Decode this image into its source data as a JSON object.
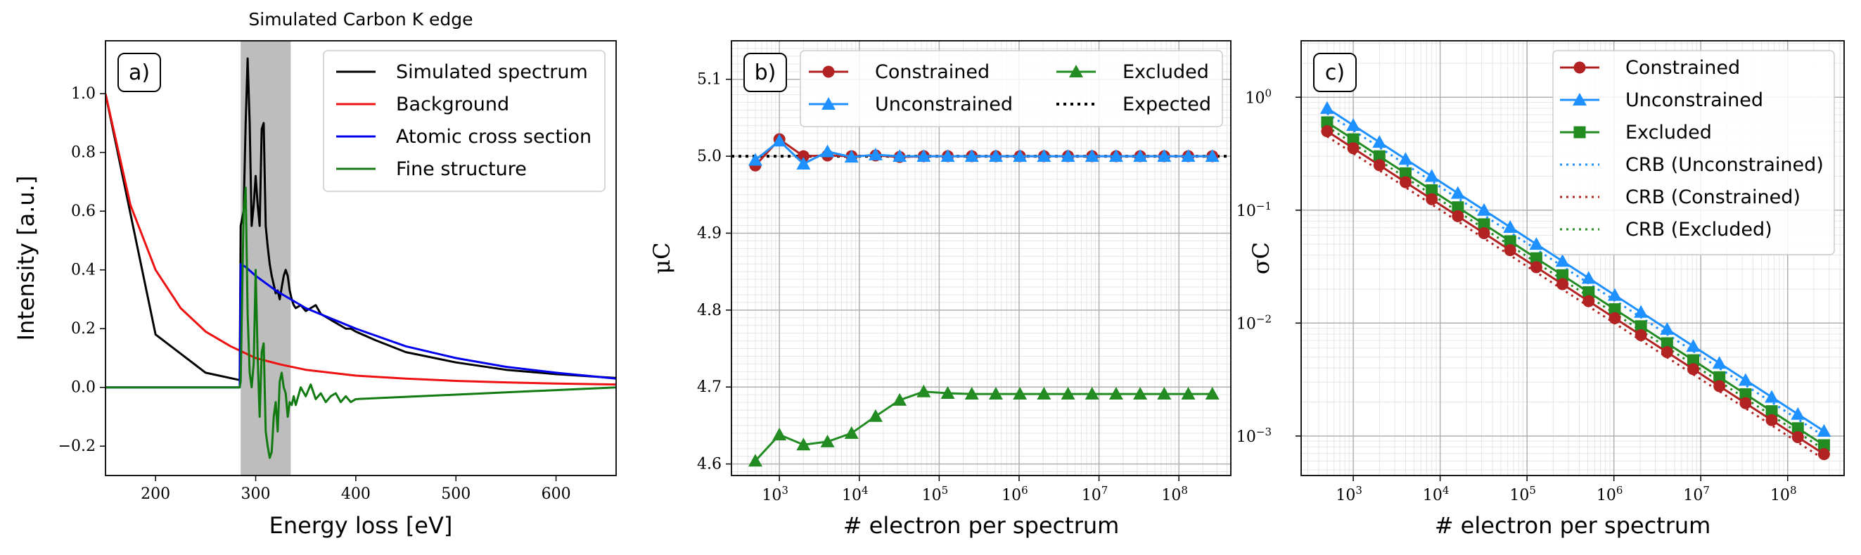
{
  "colors": {
    "black": "#000000",
    "red": "#ee1111",
    "blue": "#0000ee",
    "green": "#117a11",
    "constrained": "#b22222",
    "unconstrained": "#1e90ff",
    "excluded": "#228b22",
    "shade": "#bdbdbd",
    "grid_major": "#b0b0b0",
    "grid_minor": "#e6e6e6"
  },
  "chart_data": [
    {
      "type": "line",
      "panel_label": "a)",
      "title": "Simulated Carbon K edge",
      "xlabel": "Energy loss [eV]",
      "ylabel": "Intensity [a.u.]",
      "xlim": [
        150,
        660
      ],
      "ylim": [
        -0.3,
        1.18
      ],
      "xticks": [
        200,
        300,
        400,
        500,
        600
      ],
      "xtick_labels": [
        "200",
        "300",
        "400",
        "500",
        "600"
      ],
      "yticks": [
        -0.2,
        0.0,
        0.2,
        0.4,
        0.6,
        0.8,
        1.0
      ],
      "ytick_labels": [
        "−0.2",
        "0.0",
        "0.2",
        "0.4",
        "0.6",
        "0.8",
        "1.0"
      ],
      "shaded_region": [
        285,
        335
      ],
      "legend": [
        "Simulated spectrum",
        "Background",
        "Atomic cross section",
        "Fine structure"
      ],
      "series": [
        {
          "name": "Simulated spectrum",
          "color": "black",
          "x": [
            150,
            200,
            250,
            284,
            285,
            288,
            290,
            292,
            294,
            296,
            298,
            300,
            302,
            304,
            306,
            308,
            310,
            312,
            314,
            316,
            318,
            320,
            322,
            324,
            326,
            328,
            330,
            332,
            334,
            336,
            338,
            340,
            345,
            350,
            355,
            360,
            365,
            370,
            375,
            380,
            385,
            390,
            395,
            400,
            420,
            450,
            500,
            550,
            600,
            660
          ],
          "y": [
            1.0,
            0.18,
            0.05,
            0.025,
            0.55,
            0.6,
            0.9,
            1.12,
            0.9,
            0.55,
            0.62,
            0.72,
            0.62,
            0.55,
            0.88,
            0.9,
            0.55,
            0.48,
            0.42,
            0.38,
            0.35,
            0.32,
            0.33,
            0.3,
            0.34,
            0.38,
            0.4,
            0.38,
            0.33,
            0.3,
            0.28,
            0.27,
            0.28,
            0.26,
            0.27,
            0.28,
            0.25,
            0.24,
            0.23,
            0.22,
            0.21,
            0.2,
            0.2,
            0.19,
            0.16,
            0.12,
            0.085,
            0.06,
            0.045,
            0.032
          ]
        },
        {
          "name": "Background",
          "color": "red",
          "x": [
            150,
            175,
            200,
            225,
            250,
            275,
            300,
            325,
            350,
            400,
            450,
            500,
            550,
            600,
            660
          ],
          "y": [
            1.0,
            0.62,
            0.4,
            0.27,
            0.19,
            0.14,
            0.1,
            0.078,
            0.06,
            0.04,
            0.03,
            0.022,
            0.017,
            0.013,
            0.01
          ]
        },
        {
          "name": "Atomic cross section",
          "color": "blue",
          "x": [
            150,
            284,
            285,
            290,
            300,
            320,
            350,
            400,
            450,
            500,
            550,
            600,
            660
          ],
          "y": [
            0,
            0,
            0.42,
            0.41,
            0.38,
            0.33,
            0.27,
            0.2,
            0.14,
            0.1,
            0.07,
            0.05,
            0.03
          ]
        },
        {
          "name": "Fine structure",
          "color": "green",
          "x": [
            150,
            284,
            285,
            288,
            290,
            292,
            294,
            296,
            298,
            300,
            302,
            304,
            306,
            308,
            310,
            312,
            314,
            316,
            318,
            320,
            322,
            324,
            326,
            328,
            330,
            332,
            334,
            336,
            338,
            340,
            345,
            350,
            355,
            360,
            365,
            370,
            375,
            380,
            385,
            390,
            395,
            400,
            660
          ],
          "y": [
            0,
            0,
            0.02,
            0.6,
            0.68,
            0.25,
            0.05,
            0.0,
            0.08,
            0.4,
            0.1,
            -0.1,
            0.12,
            0.15,
            -0.15,
            -0.2,
            -0.24,
            -0.22,
            -0.1,
            -0.05,
            -0.15,
            0.02,
            0.05,
            0.0,
            -0.02,
            -0.1,
            -0.05,
            -0.06,
            -0.03,
            -0.06,
            0.0,
            -0.03,
            0.01,
            -0.04,
            -0.02,
            -0.05,
            -0.03,
            -0.02,
            -0.05,
            -0.03,
            -0.05,
            -0.04,
            0.0
          ]
        }
      ]
    },
    {
      "type": "line",
      "panel_label": "b)",
      "xlabel": "# electron per spectrum",
      "ylabel": "μC",
      "xscale": "log",
      "xlim_log10": [
        2.4,
        8.65
      ],
      "ylim": [
        4.585,
        5.15
      ],
      "xtick_exponents": [
        3,
        4,
        5,
        6,
        7,
        8
      ],
      "xtick_labels": [
        "10",
        "10",
        "10",
        "10",
        "10",
        "10"
      ],
      "yticks": [
        4.6,
        4.7,
        4.8,
        4.9,
        5.0,
        5.1
      ],
      "ytick_labels": [
        "4.6",
        "4.7",
        "4.8",
        "4.9",
        "5.0",
        "5.1"
      ],
      "x": [
        500,
        1000,
        2000,
        4000,
        8000,
        16000,
        32000,
        64000,
        128000,
        256000,
        512000,
        1024000,
        2048000,
        4096000,
        8192000,
        16384000,
        32768000,
        65536000,
        131072000,
        262144000
      ],
      "legend": [
        "Constrained",
        "Unconstrained",
        "Excluded",
        "Expected"
      ],
      "expected": 5.0,
      "series": [
        {
          "name": "Constrained",
          "color": "constrained",
          "marker": "circle",
          "values": [
            4.988,
            5.022,
            5.0,
            5.001,
            5.0,
            5.001,
            4.999,
            5.0,
            5.0,
            5.0,
            5.0,
            5.0,
            5.0,
            5.0,
            5.0,
            5.0,
            5.0,
            5.0,
            5.0,
            5.0
          ]
        },
        {
          "name": "Unconstrained",
          "color": "unconstrained",
          "marker": "triangle",
          "values": [
            4.995,
            5.02,
            4.99,
            5.006,
            4.999,
            5.002,
            5.0,
            5.0,
            5.0,
            5.0,
            5.0,
            5.0,
            5.0,
            5.0,
            5.0,
            5.0,
            5.0,
            5.0,
            5.0,
            5.0
          ]
        },
        {
          "name": "Excluded",
          "color": "excluded",
          "marker": "triangle",
          "values": [
            4.604,
            4.638,
            4.625,
            4.629,
            4.64,
            4.662,
            4.683,
            4.694,
            4.692,
            4.691,
            4.691,
            4.691,
            4.691,
            4.691,
            4.691,
            4.691,
            4.691,
            4.691,
            4.691,
            4.691
          ]
        }
      ]
    },
    {
      "type": "line",
      "panel_label": "c)",
      "xlabel": "# electron per spectrum",
      "ylabel": "σC",
      "xscale": "log",
      "yscale": "log",
      "xlim_log10": [
        2.4,
        8.65
      ],
      "ylim_log10": [
        -3.35,
        0.5
      ],
      "xtick_exponents": [
        3,
        4,
        5,
        6,
        7,
        8
      ],
      "ytick_exponents": [
        -3,
        -2,
        -1,
        0
      ],
      "tick_base": "10",
      "x": [
        500,
        1000,
        2000,
        4000,
        8000,
        16000,
        32000,
        64000,
        128000,
        256000,
        512000,
        1024000,
        2048000,
        4096000,
        8192000,
        16384000,
        32768000,
        65536000,
        131072000,
        262144000
      ],
      "legend": [
        "Constrained",
        "Unconstrained",
        "Excluded",
        "CRB (Unconstrained)",
        "CRB (Constrained)",
        "CRB (Excluded)"
      ],
      "sigma_at_500": {
        "Constrained": 0.5,
        "Unconstrained": 0.8,
        "Excluded": 0.6
      },
      "crb_at_500": {
        "CRB (Unconstrained)": 0.72,
        "CRB (Constrained)": 0.45,
        "CRB (Excluded)": 0.55
      }
    }
  ]
}
